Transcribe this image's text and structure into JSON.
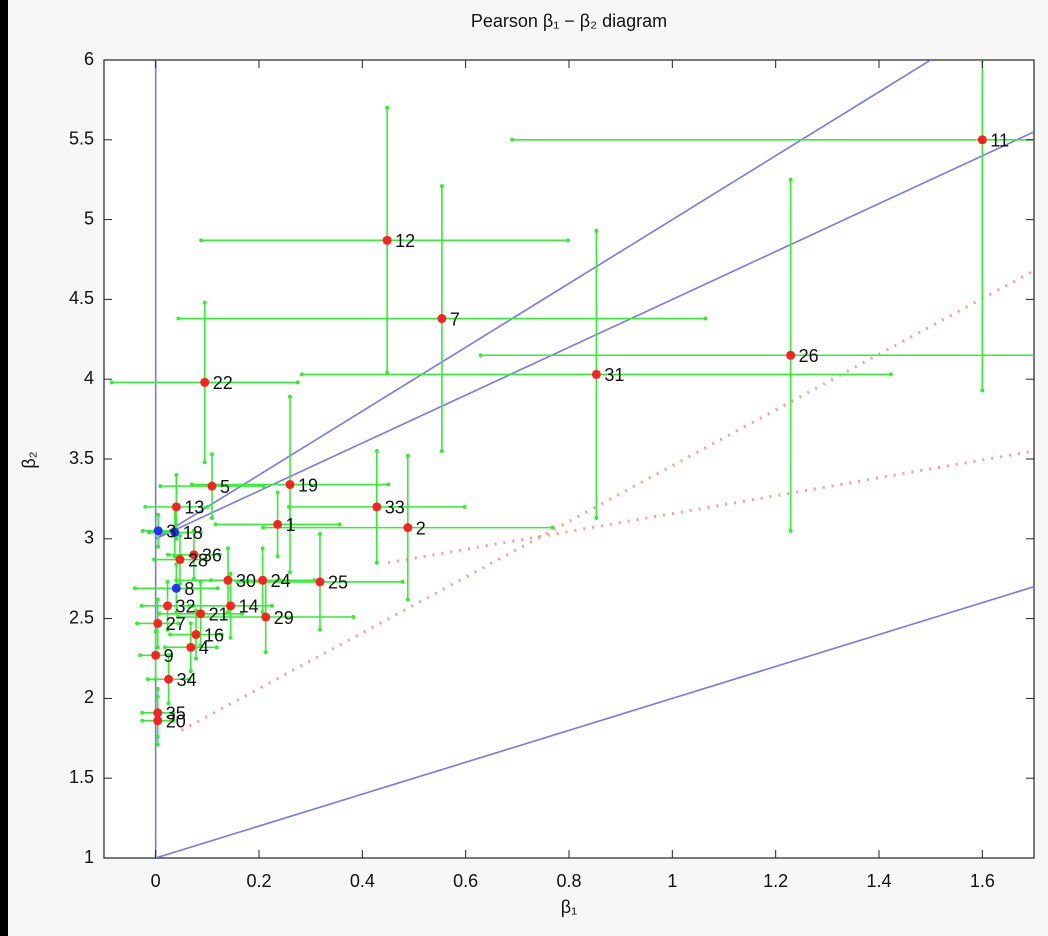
{
  "chart_data": {
    "type": "errorbar-scatter",
    "title": "Pearson β₁ − β₂ diagram",
    "xlabel": "β₁",
    "ylabel": "β₂",
    "xlim": [
      -0.1,
      1.7
    ],
    "ylim": [
      1,
      6
    ],
    "xticks": [
      0,
      0.2,
      0.4,
      0.6,
      0.8,
      1,
      1.2,
      1.4,
      1.6
    ],
    "yticks": [
      1,
      1.5,
      2,
      2.5,
      3,
      3.5,
      4,
      4.5,
      5,
      5.5,
      6
    ],
    "marker_color": "#ff2020",
    "alt_marker_color": "#2030ff",
    "errorbar_color": "#33ee33",
    "lines": [
      {
        "color": "#7777ee",
        "style": "solid",
        "x": [
          0,
          0
        ],
        "y": [
          1,
          6
        ]
      },
      {
        "color": "#7777ee",
        "style": "solid",
        "x": [
          0,
          1.7
        ],
        "y": [
          1,
          2.7
        ]
      },
      {
        "color": "#7777ee",
        "style": "solid",
        "x": [
          0,
          1.5
        ],
        "y": [
          3,
          6
        ]
      },
      {
        "color": "#7777ee",
        "style": "solid",
        "x": [
          0,
          1.7
        ],
        "y": [
          3,
          5.55
        ]
      },
      {
        "color": "#ff9999",
        "style": "dotted",
        "x": [
          0.05,
          1.7
        ],
        "y": [
          1.8,
          4.68
        ]
      },
      {
        "color": "#ff9999",
        "style": "dotted",
        "x": [
          0.45,
          1.7
        ],
        "y": [
          2.85,
          3.55
        ]
      }
    ],
    "points": [
      {
        "label": "11",
        "x": 1.6,
        "y": 5.5,
        "xerr": [
          0.91,
          0.4
        ],
        "yerr": [
          1.57,
          0.5
        ],
        "alt": false
      },
      {
        "label": "12",
        "x": 0.448,
        "y": 4.87,
        "xerr": [
          0.36,
          0.35
        ],
        "yerr": [
          0.83,
          0.83
        ],
        "alt": false
      },
      {
        "label": "7",
        "x": 0.554,
        "y": 4.38,
        "xerr": [
          0.51,
          0.51
        ],
        "yerr": [
          0.83,
          0.83
        ],
        "alt": false
      },
      {
        "label": "22",
        "x": 0.095,
        "y": 3.98,
        "xerr": [
          0.18,
          0.18
        ],
        "yerr": [
          0.5,
          0.5
        ],
        "alt": false
      },
      {
        "label": "31",
        "x": 0.853,
        "y": 4.03,
        "xerr": [
          0.57,
          0.57
        ],
        "yerr": [
          0.9,
          0.9
        ],
        "alt": false
      },
      {
        "label": "26",
        "x": 1.229,
        "y": 4.15,
        "xerr": [
          0.6,
          0.6
        ],
        "yerr": [
          1.1,
          1.1
        ],
        "alt": false
      },
      {
        "label": "19",
        "x": 0.26,
        "y": 3.34,
        "xerr": [
          0.19,
          0.19
        ],
        "yerr": [
          0.55,
          0.55
        ],
        "alt": false
      },
      {
        "label": "5",
        "x": 0.109,
        "y": 3.33,
        "xerr": [
          0.1,
          0.1
        ],
        "yerr": [
          0.2,
          0.2
        ],
        "alt": false
      },
      {
        "label": "13",
        "x": 0.04,
        "y": 3.2,
        "xerr": [
          0.06,
          0.06
        ],
        "yerr": [
          0.2,
          0.2
        ],
        "alt": false
      },
      {
        "label": "33",
        "x": 0.428,
        "y": 3.2,
        "xerr": [
          0.17,
          0.17
        ],
        "yerr": [
          0.35,
          0.35
        ],
        "alt": false
      },
      {
        "label": "2",
        "x": 0.488,
        "y": 3.07,
        "xerr": [
          0.28,
          0.28
        ],
        "yerr": [
          0.45,
          0.45
        ],
        "alt": false
      },
      {
        "label": "1",
        "x": 0.236,
        "y": 3.09,
        "xerr": [
          0.12,
          0.12
        ],
        "yerr": [
          0.2,
          0.2
        ],
        "alt": false
      },
      {
        "label": "18",
        "x": 0.037,
        "y": 3.04,
        "xerr": [
          0.05,
          0.05
        ],
        "yerr": [
          0.15,
          0.15
        ],
        "alt": true
      },
      {
        "label": "3",
        "x": 0.005,
        "y": 3.05,
        "xerr": [
          0.03,
          0.03
        ],
        "yerr": [
          0.1,
          0.1
        ],
        "alt": true
      },
      {
        "label": "28",
        "x": 0.047,
        "y": 2.87,
        "xerr": [
          0.05,
          0.05
        ],
        "yerr": [
          0.15,
          0.15
        ],
        "alt": false
      },
      {
        "label": "36",
        "x": 0.074,
        "y": 2.9,
        "xerr": [
          0.05,
          0.05
        ],
        "yerr": [
          0.15,
          0.15
        ],
        "alt": false
      },
      {
        "label": "24",
        "x": 0.207,
        "y": 2.74,
        "xerr": [
          0.1,
          0.1
        ],
        "yerr": [
          0.2,
          0.2
        ],
        "alt": false
      },
      {
        "label": "30",
        "x": 0.14,
        "y": 2.74,
        "xerr": [
          0.1,
          0.1
        ],
        "yerr": [
          0.2,
          0.2
        ],
        "alt": false
      },
      {
        "label": "25",
        "x": 0.318,
        "y": 2.73,
        "xerr": [
          0.16,
          0.16
        ],
        "yerr": [
          0.3,
          0.3
        ],
        "alt": false
      },
      {
        "label": "8",
        "x": 0.04,
        "y": 2.69,
        "xerr": [
          0.08,
          0.08
        ],
        "yerr": [
          0.15,
          0.15
        ],
        "alt": true
      },
      {
        "label": "32",
        "x": 0.023,
        "y": 2.58,
        "xerr": [
          0.05,
          0.05
        ],
        "yerr": [
          0.15,
          0.15
        ],
        "alt": false
      },
      {
        "label": "14",
        "x": 0.145,
        "y": 2.58,
        "xerr": [
          0.08,
          0.08
        ],
        "yerr": [
          0.2,
          0.2
        ],
        "alt": false
      },
      {
        "label": "21",
        "x": 0.087,
        "y": 2.53,
        "xerr": [
          0.08,
          0.08
        ],
        "yerr": [
          0.2,
          0.2
        ],
        "alt": false
      },
      {
        "label": "29",
        "x": 0.213,
        "y": 2.51,
        "xerr": [
          0.17,
          0.17
        ],
        "yerr": [
          0.22,
          0.22
        ],
        "alt": false
      },
      {
        "label": "27",
        "x": 0.004,
        "y": 2.47,
        "xerr": [
          0.04,
          0.04
        ],
        "yerr": [
          0.15,
          0.15
        ],
        "alt": false
      },
      {
        "label": "16",
        "x": 0.078,
        "y": 2.4,
        "xerr": [
          0.05,
          0.05
        ],
        "yerr": [
          0.15,
          0.15
        ],
        "alt": false
      },
      {
        "label": "4",
        "x": 0.068,
        "y": 2.32,
        "xerr": [
          0.05,
          0.05
        ],
        "yerr": [
          0.15,
          0.15
        ],
        "alt": false
      },
      {
        "label": "9",
        "x": 0,
        "y": 2.27,
        "xerr": [
          0.03,
          0.03
        ],
        "yerr": [
          0.15,
          0.15
        ],
        "alt": false
      },
      {
        "label": "34",
        "x": 0.025,
        "y": 2.12,
        "xerr": [
          0.04,
          0.04
        ],
        "yerr": [
          0.15,
          0.15
        ],
        "alt": false
      },
      {
        "label": "35",
        "x": 0.004,
        "y": 1.91,
        "xerr": [
          0.03,
          0.03
        ],
        "yerr": [
          0.15,
          0.15
        ],
        "alt": false
      },
      {
        "label": "20",
        "x": 0.004,
        "y": 1.86,
        "xerr": [
          0.03,
          0.03
        ],
        "yerr": [
          0.15,
          0.15
        ],
        "alt": false
      }
    ]
  }
}
